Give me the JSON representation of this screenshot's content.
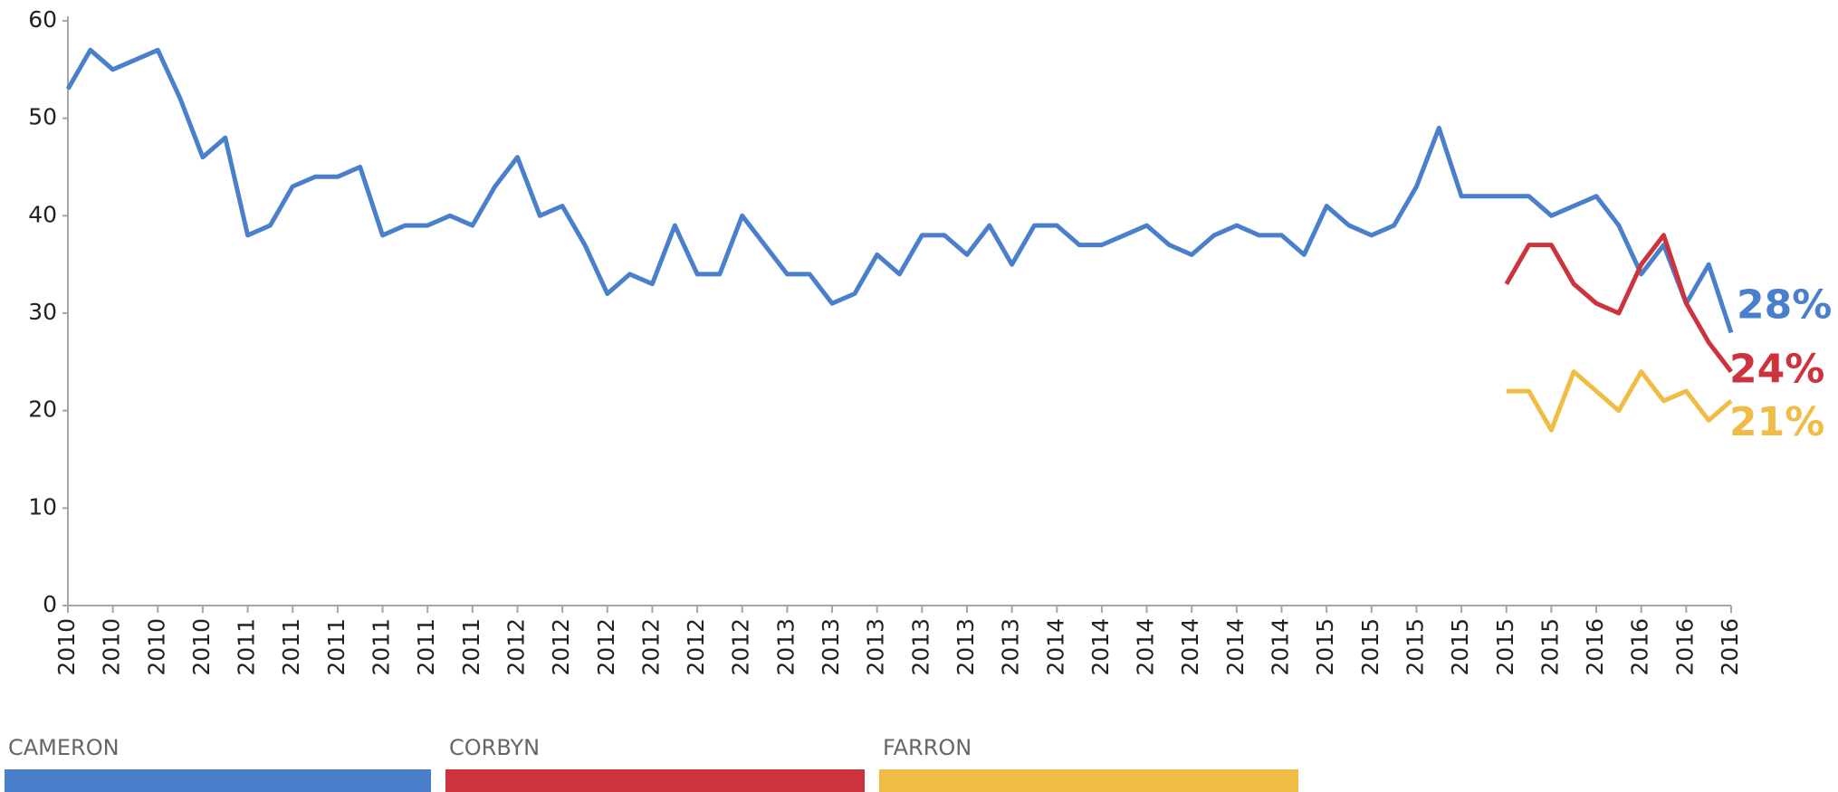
{
  "chart_data": {
    "type": "line",
    "categories": [
      "2010",
      null,
      "2010",
      null,
      "2010",
      null,
      "2010",
      null,
      "2011",
      null,
      "2011",
      null,
      "2011",
      null,
      "2011",
      null,
      "2011",
      null,
      "2011",
      null,
      "2012",
      null,
      "2012",
      null,
      "2012",
      null,
      "2012",
      null,
      "2012",
      null,
      "2012",
      null,
      "2013",
      null,
      "2013",
      null,
      "2013",
      null,
      "2013",
      null,
      "2013",
      null,
      "2013",
      null,
      "2014",
      null,
      "2014",
      null,
      "2014",
      null,
      "2014",
      null,
      "2014",
      null,
      "2014",
      null,
      "2015",
      null,
      "2015",
      null,
      "2015",
      null,
      "2015",
      null,
      "2015",
      null,
      "2015",
      null,
      "2016",
      null,
      "2016",
      null,
      "2016",
      null,
      "2016"
    ],
    "series": [
      {
        "name": "CAMERON",
        "color": "#4a7fcb",
        "values": [
          53,
          57,
          55,
          56,
          57,
          52,
          46,
          48,
          38,
          39,
          43,
          44,
          44,
          45,
          38,
          39,
          39,
          40,
          39,
          43,
          46,
          40,
          41,
          37,
          32,
          34,
          33,
          39,
          34,
          34,
          40,
          37,
          34,
          34,
          31,
          32,
          36,
          34,
          38,
          38,
          36,
          39,
          35,
          39,
          39,
          37,
          37,
          38,
          39,
          37,
          36,
          38,
          39,
          38,
          38,
          36,
          41,
          39,
          38,
          39,
          43,
          49,
          42,
          42,
          42,
          42,
          40,
          41,
          42,
          39,
          34,
          37,
          31,
          35,
          28
        ],
        "value_labels": [
          null,
          null,
          null,
          null,
          null,
          null,
          null,
          null,
          null,
          null,
          null,
          null,
          null,
          null,
          null,
          null,
          null,
          null,
          null,
          null,
          null,
          null,
          null,
          null,
          null,
          null,
          null,
          null,
          null,
          null,
          null,
          null,
          null,
          null,
          null,
          null,
          null,
          null,
          null,
          null,
          null,
          null,
          null,
          null,
          null,
          null,
          null,
          null,
          null,
          null,
          null,
          null,
          null,
          null,
          null,
          null,
          null,
          null,
          null,
          null,
          null,
          null,
          null,
          null,
          null,
          null,
          null,
          null,
          null,
          null,
          null,
          null,
          null,
          null,
          "28%"
        ]
      },
      {
        "name": "CORBYN",
        "color": "#cc333d",
        "values": [
          null,
          null,
          null,
          null,
          null,
          null,
          null,
          null,
          null,
          null,
          null,
          null,
          null,
          null,
          null,
          null,
          null,
          null,
          null,
          null,
          null,
          null,
          null,
          null,
          null,
          null,
          null,
          null,
          null,
          null,
          null,
          null,
          null,
          null,
          null,
          null,
          null,
          null,
          null,
          null,
          null,
          null,
          null,
          null,
          null,
          null,
          null,
          null,
          null,
          null,
          null,
          null,
          null,
          null,
          null,
          null,
          null,
          null,
          null,
          null,
          null,
          null,
          null,
          null,
          33,
          37,
          37,
          33,
          31,
          30,
          35,
          38,
          31,
          27,
          24
        ],
        "value_labels": [
          null,
          null,
          null,
          null,
          null,
          null,
          null,
          null,
          null,
          null,
          null,
          null,
          null,
          null,
          null,
          null,
          null,
          null,
          null,
          null,
          null,
          null,
          null,
          null,
          null,
          null,
          null,
          null,
          null,
          null,
          null,
          null,
          null,
          null,
          null,
          null,
          null,
          null,
          null,
          null,
          null,
          null,
          null,
          null,
          null,
          null,
          null,
          null,
          null,
          null,
          null,
          null,
          null,
          null,
          null,
          null,
          null,
          null,
          null,
          null,
          null,
          null,
          null,
          null,
          null,
          null,
          null,
          null,
          null,
          null,
          null,
          null,
          null,
          null,
          "24%"
        ]
      },
      {
        "name": "FARRON",
        "color": "#f0bc45",
        "values": [
          null,
          null,
          null,
          null,
          null,
          null,
          null,
          null,
          null,
          null,
          null,
          null,
          null,
          null,
          null,
          null,
          null,
          null,
          null,
          null,
          null,
          null,
          null,
          null,
          null,
          null,
          null,
          null,
          null,
          null,
          null,
          null,
          null,
          null,
          null,
          null,
          null,
          null,
          null,
          null,
          null,
          null,
          null,
          null,
          null,
          null,
          null,
          null,
          null,
          null,
          null,
          null,
          null,
          null,
          null,
          null,
          null,
          null,
          null,
          null,
          null,
          null,
          null,
          null,
          22,
          22,
          18,
          24,
          22,
          20,
          24,
          21,
          22,
          19,
          21
        ],
        "value_labels": [
          null,
          null,
          null,
          null,
          null,
          null,
          null,
          null,
          null,
          null,
          null,
          null,
          null,
          null,
          null,
          null,
          null,
          null,
          null,
          null,
          null,
          null,
          null,
          null,
          null,
          null,
          null,
          null,
          null,
          null,
          null,
          null,
          null,
          null,
          null,
          null,
          null,
          null,
          null,
          null,
          null,
          null,
          null,
          null,
          null,
          null,
          null,
          null,
          null,
          null,
          null,
          null,
          null,
          null,
          null,
          null,
          null,
          null,
          null,
          null,
          null,
          null,
          null,
          null,
          null,
          null,
          null,
          null,
          null,
          null,
          null,
          null,
          null,
          null,
          "21%"
        ]
      }
    ],
    "ylim": [
      0,
      60
    ],
    "yticks": [
      0,
      10,
      20,
      30,
      40,
      50,
      60
    ],
    "grid": false,
    "legend": "bottom"
  }
}
